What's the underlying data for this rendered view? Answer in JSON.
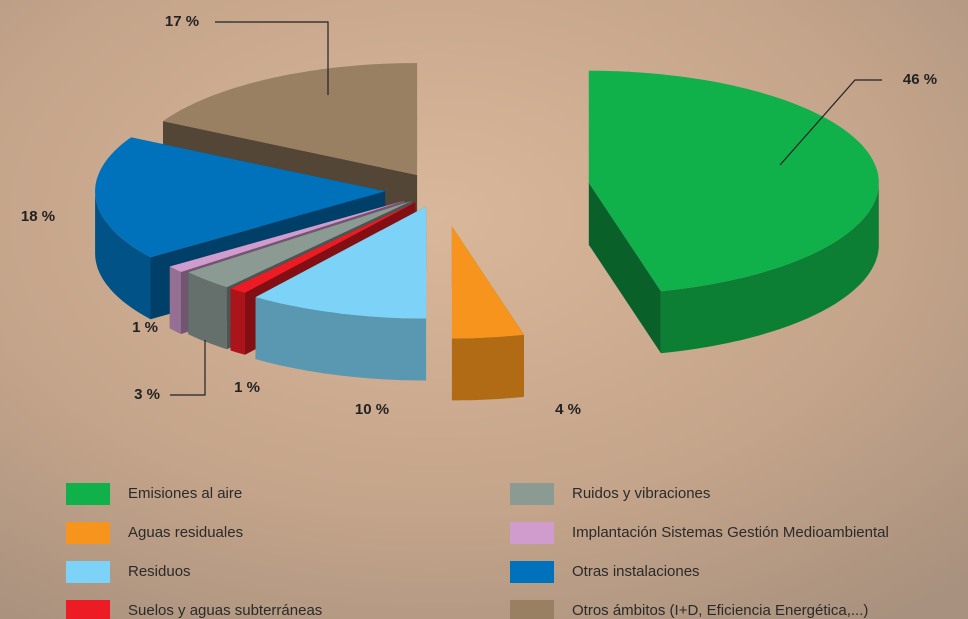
{
  "chart_data": {
    "type": "pie",
    "categories": [
      "Emisiones al aire",
      "Aguas residuales",
      "Residuos",
      "Suelos y aguas subterráneas",
      "Ruidos y vibraciones",
      "Implantación Sistemas Gestión Medioambiental",
      "Otras instalaciones",
      "Otros ámbitos (I+D, Eficiencia Energética,...)"
    ],
    "values": [
      46,
      4,
      10,
      1,
      3,
      1,
      18,
      17
    ],
    "value_labels": [
      "46 %",
      "4 %",
      "10 %",
      "1 %",
      "3 %",
      "1 %",
      "18 %",
      "17 %"
    ],
    "colors": [
      "#10b04a",
      "#f7941d",
      "#7dd3f7",
      "#ed1c24",
      "#8c9a94",
      "#cf9ccd",
      "#0072bc",
      "#998063"
    ]
  }
}
